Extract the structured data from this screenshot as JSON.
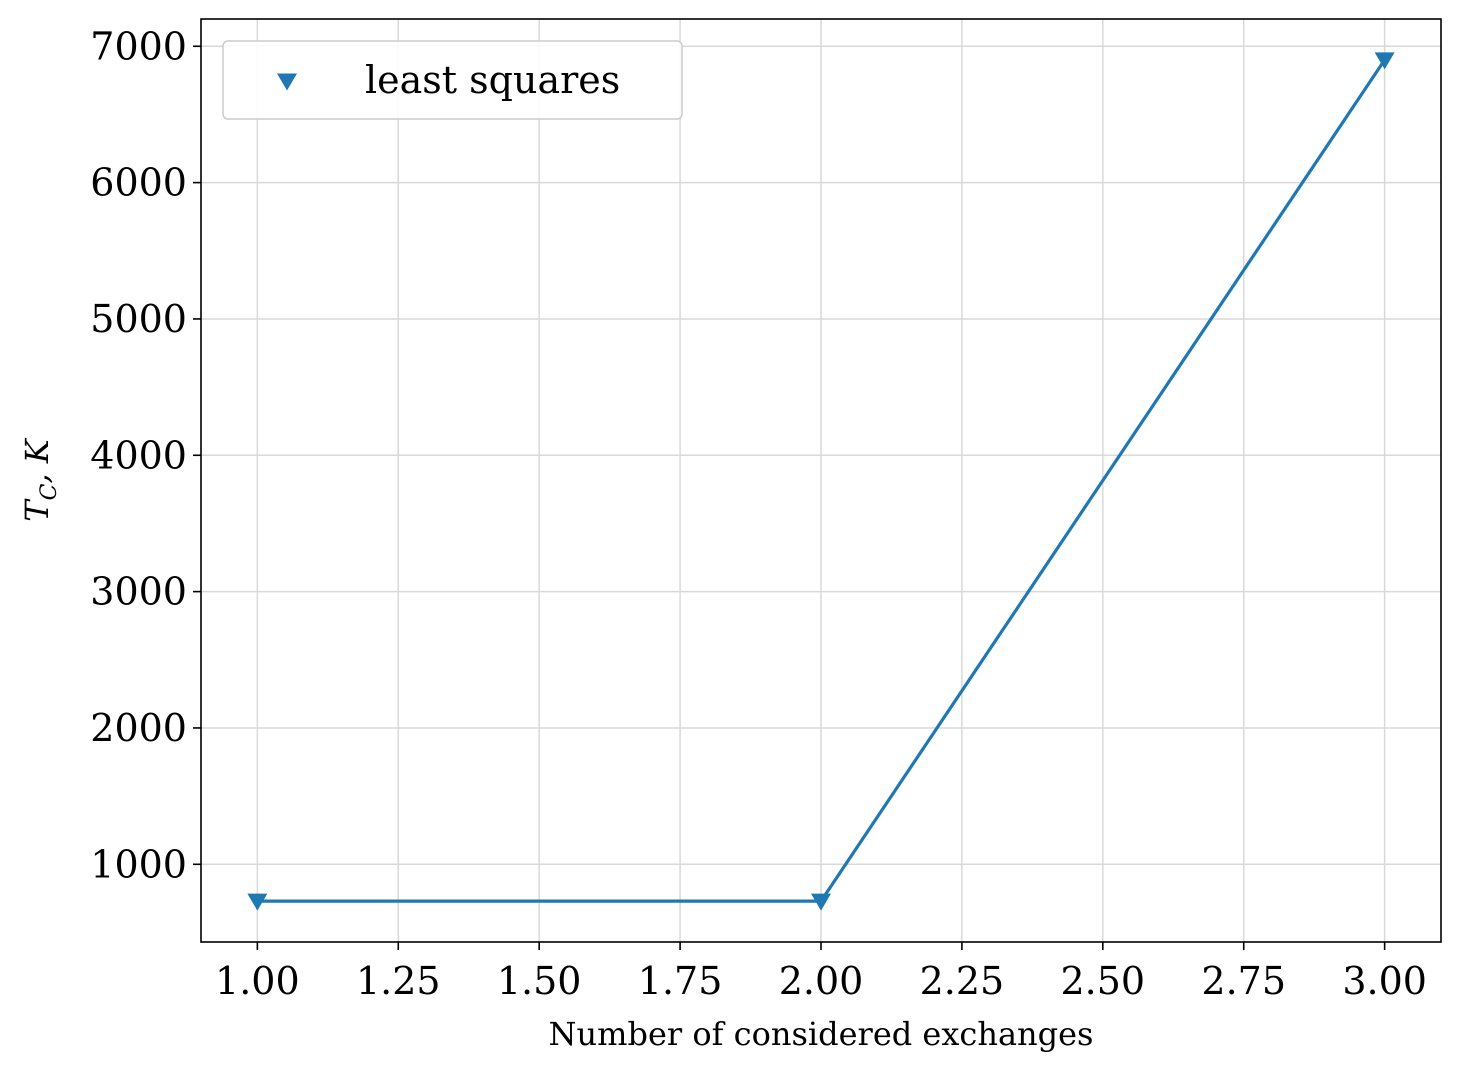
{
  "chart_data": {
    "type": "line",
    "title": "",
    "xlabel": "Number of considered exchanges",
    "ylabel_main": "T",
    "ylabel_sub": "C",
    "ylabel_rest": ", K",
    "x": [
      1.0,
      2.0,
      3.0
    ],
    "series": [
      {
        "name": "least squares",
        "values": [
          730,
          730,
          6900
        ],
        "color": "#1f77b4",
        "marker": "triangle-down"
      }
    ],
    "xlim": [
      0.9,
      3.1
    ],
    "ylim": [
      430,
      7200
    ],
    "xticks": [
      1.0,
      1.25,
      1.5,
      1.75,
      2.0,
      2.25,
      2.5,
      2.75,
      3.0
    ],
    "xtick_labels": [
      "1.00",
      "1.25",
      "1.50",
      "1.75",
      "2.00",
      "2.25",
      "2.50",
      "2.75",
      "3.00"
    ],
    "yticks": [
      1000,
      2000,
      3000,
      4000,
      5000,
      6000,
      7000
    ],
    "ytick_labels": [
      "1000",
      "2000",
      "3000",
      "4000",
      "5000",
      "6000",
      "7000"
    ],
    "grid": true,
    "legend_position": "top-left"
  }
}
